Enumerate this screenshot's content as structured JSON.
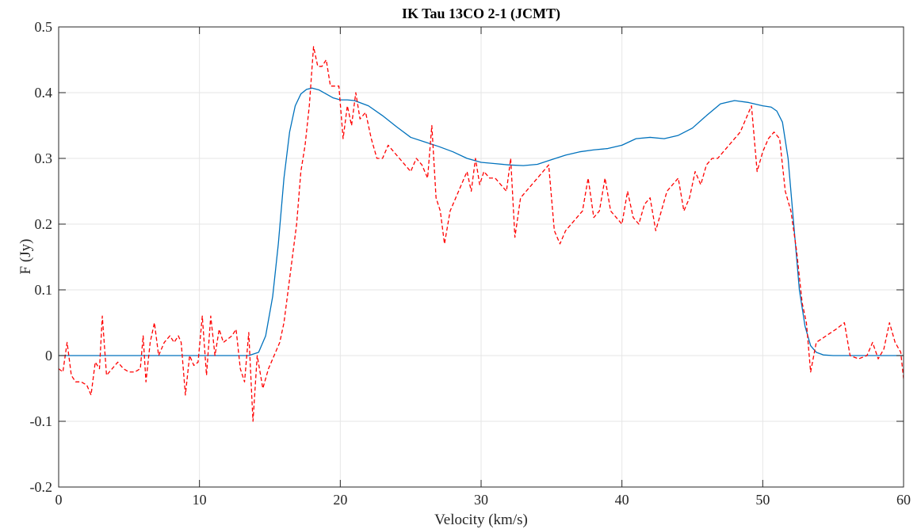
{
  "chart_data": {
    "type": "line",
    "title": "IK Tau 13CO 2-1 (JCMT)",
    "xlabel": "Velocity (km/s)",
    "ylabel": "F (Jy)",
    "xlim": [
      0,
      60
    ],
    "ylim": [
      -0.2,
      0.5
    ],
    "xticks": [
      0,
      10,
      20,
      30,
      40,
      50,
      60
    ],
    "yticks": [
      -0.2,
      -0.1,
      0,
      0.1,
      0.2,
      0.3,
      0.4,
      0.5
    ],
    "xtick_labels": [
      "0",
      "10",
      "20",
      "30",
      "40",
      "50",
      "60"
    ],
    "ytick_labels": [
      "-0.2",
      "-0.1",
      "0",
      "0.1",
      "0.2",
      "0.3",
      "0.4",
      "0.5"
    ],
    "grid": true,
    "series": [
      {
        "style": "solid",
        "color": "#0072BD",
        "x": [
          0,
          13.5,
          14.2,
          14.7,
          15.2,
          15.6,
          16.0,
          16.4,
          16.8,
          17.2,
          17.6,
          18.0,
          18.5,
          19.0,
          19.5,
          20.0,
          20.5,
          21.0,
          22.0,
          23.0,
          24.0,
          25.0,
          26.0,
          27.0,
          28.0,
          29.0,
          30.0,
          31.0,
          32.0,
          33.0,
          34.0,
          35.0,
          36.0,
          37.0,
          38.0,
          39.0,
          40.0,
          41.0,
          42.0,
          43.0,
          44.0,
          45.0,
          46.0,
          47.0,
          48.0,
          49.0,
          50.0,
          50.6,
          51.0,
          51.4,
          51.8,
          52.2,
          52.6,
          53.0,
          53.4,
          53.8,
          54.3,
          55.0,
          60.0
        ],
        "y": [
          0,
          0,
          0.005,
          0.03,
          0.09,
          0.17,
          0.27,
          0.34,
          0.38,
          0.398,
          0.405,
          0.407,
          0.404,
          0.398,
          0.392,
          0.389,
          0.389,
          0.388,
          0.38,
          0.365,
          0.348,
          0.332,
          0.325,
          0.318,
          0.31,
          0.3,
          0.294,
          0.292,
          0.29,
          0.289,
          0.291,
          0.298,
          0.305,
          0.31,
          0.313,
          0.315,
          0.32,
          0.33,
          0.332,
          0.33,
          0.335,
          0.346,
          0.365,
          0.383,
          0.388,
          0.385,
          0.38,
          0.378,
          0.372,
          0.355,
          0.3,
          0.2,
          0.1,
          0.045,
          0.015,
          0.005,
          0.001,
          0,
          0
        ]
      },
      {
        "style": "dashed",
        "color": "#FF0000",
        "x": [
          0,
          0.3,
          0.6,
          0.9,
          1.2,
          1.6,
          2.0,
          2.3,
          2.6,
          2.9,
          3.1,
          3.4,
          3.8,
          4.2,
          4.6,
          5.0,
          5.4,
          5.8,
          6.0,
          6.2,
          6.5,
          6.8,
          7.1,
          7.5,
          7.9,
          8.2,
          8.5,
          8.7,
          9.0,
          9.3,
          9.6,
          9.9,
          10.2,
          10.5,
          10.8,
          11.1,
          11.4,
          11.7,
          12.0,
          12.3,
          12.6,
          12.9,
          13.2,
          13.5,
          13.8,
          14.1,
          14.5,
          14.9,
          15.3,
          15.7,
          16.0,
          16.3,
          16.6,
          16.9,
          17.2,
          17.5,
          17.8,
          18.1,
          18.4,
          18.7,
          19.0,
          19.3,
          19.6,
          19.9,
          20.2,
          20.5,
          20.8,
          21.1,
          21.4,
          21.8,
          22.2,
          22.6,
          23.0,
          23.4,
          23.8,
          24.2,
          24.6,
          25.0,
          25.4,
          25.8,
          26.2,
          26.5,
          26.8,
          27.1,
          27.4,
          27.8,
          28.2,
          28.6,
          29.0,
          29.3,
          29.6,
          29.9,
          30.2,
          30.6,
          31.0,
          31.4,
          31.8,
          32.1,
          32.4,
          32.8,
          33.2,
          33.6,
          34.0,
          34.4,
          34.8,
          35.2,
          35.6,
          36.0,
          36.4,
          36.8,
          37.2,
          37.6,
          38.0,
          38.4,
          38.8,
          39.2,
          39.6,
          40.0,
          40.4,
          40.8,
          41.2,
          41.6,
          42.0,
          42.4,
          42.8,
          43.2,
          43.6,
          44.0,
          44.4,
          44.8,
          45.2,
          45.6,
          46.0,
          46.4,
          46.8,
          47.2,
          47.6,
          48.0,
          48.4,
          48.8,
          49.2,
          49.6,
          50.0,
          50.4,
          50.8,
          51.2,
          51.6,
          52.0,
          52.4,
          52.8,
          53.1,
          53.4,
          53.8,
          54.5,
          55.2,
          55.8,
          56.2,
          56.8,
          57.4,
          57.8,
          58.2,
          58.6,
          59.0,
          59.4,
          59.8,
          60.0
        ],
        "y": [
          -0.02,
          -0.025,
          0.02,
          -0.03,
          -0.04,
          -0.04,
          -0.045,
          -0.06,
          -0.01,
          -0.02,
          0.06,
          -0.03,
          -0.02,
          -0.01,
          -0.02,
          -0.025,
          -0.025,
          -0.02,
          0.03,
          -0.04,
          0.02,
          0.05,
          0.0,
          0.02,
          0.03,
          0.02,
          0.03,
          0.02,
          -0.06,
          0.0,
          -0.015,
          -0.01,
          0.06,
          -0.03,
          0.06,
          0.0,
          0.04,
          0.02,
          0.025,
          0.03,
          0.04,
          -0.02,
          -0.04,
          0.035,
          -0.1,
          0.0,
          -0.05,
          -0.02,
          0.0,
          0.02,
          0.05,
          0.1,
          0.15,
          0.2,
          0.28,
          0.32,
          0.38,
          0.47,
          0.44,
          0.44,
          0.45,
          0.41,
          0.41,
          0.41,
          0.33,
          0.38,
          0.35,
          0.4,
          0.36,
          0.37,
          0.33,
          0.3,
          0.3,
          0.32,
          0.31,
          0.3,
          0.29,
          0.28,
          0.3,
          0.29,
          0.27,
          0.35,
          0.24,
          0.22,
          0.17,
          0.22,
          0.24,
          0.26,
          0.28,
          0.25,
          0.3,
          0.26,
          0.28,
          0.27,
          0.27,
          0.26,
          0.25,
          0.3,
          0.18,
          0.24,
          0.25,
          0.26,
          0.27,
          0.28,
          0.29,
          0.19,
          0.17,
          0.19,
          0.2,
          0.21,
          0.22,
          0.27,
          0.21,
          0.22,
          0.27,
          0.22,
          0.21,
          0.2,
          0.25,
          0.21,
          0.2,
          0.23,
          0.24,
          0.19,
          0.22,
          0.25,
          0.26,
          0.27,
          0.22,
          0.24,
          0.28,
          0.26,
          0.29,
          0.3,
          0.3,
          0.31,
          0.32,
          0.33,
          0.34,
          0.36,
          0.38,
          0.28,
          0.31,
          0.33,
          0.34,
          0.33,
          0.25,
          0.22,
          0.16,
          0.08,
          0.05,
          -0.025,
          0.02,
          0.03,
          0.04,
          0.05,
          0.0,
          -0.005,
          0.0,
          0.02,
          -0.005,
          0.01,
          0.05,
          0.02,
          0.005,
          -0.035
        ]
      }
    ]
  }
}
